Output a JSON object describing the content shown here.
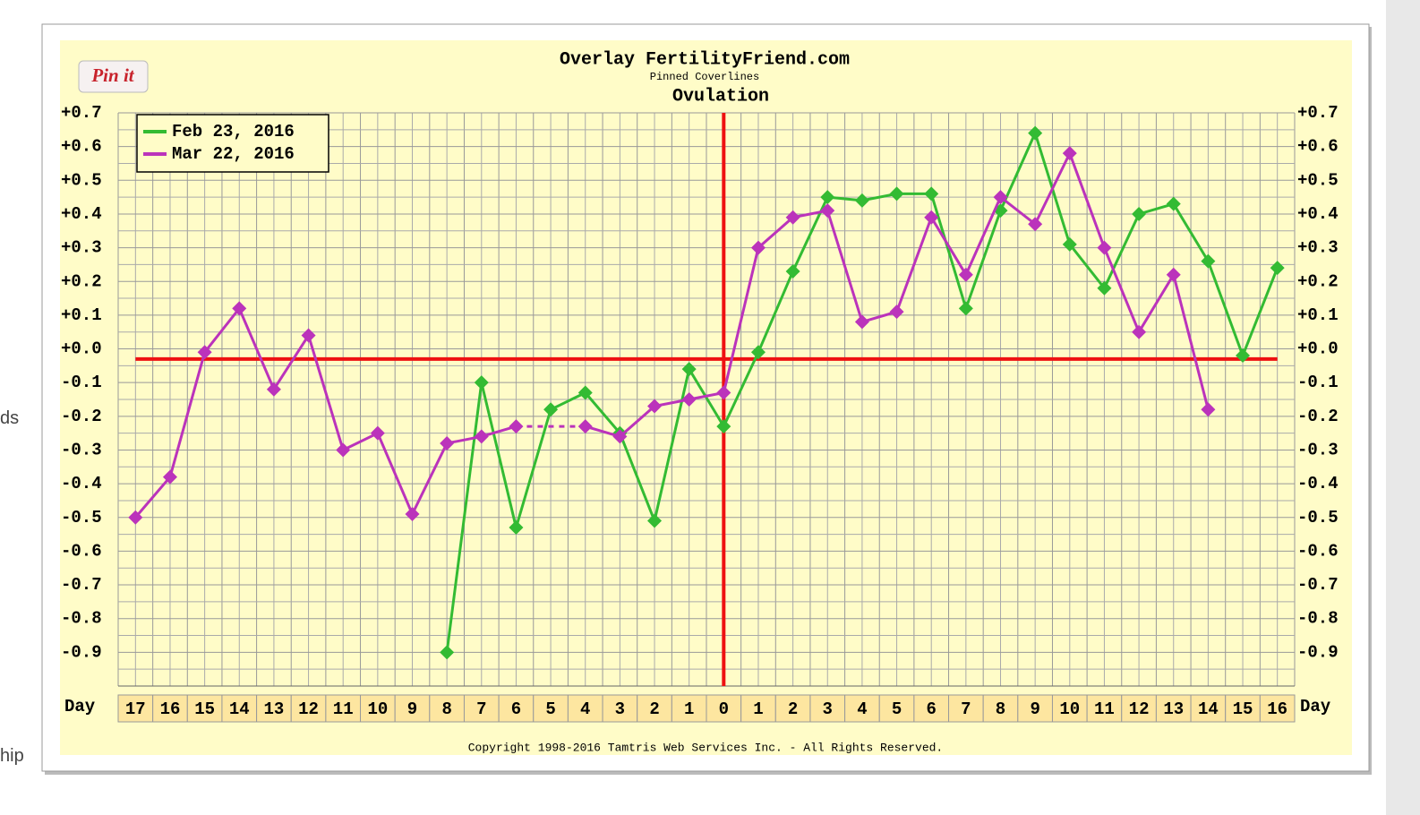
{
  "chart_data": {
    "type": "line",
    "title": "Overlay FertilityFriend.com",
    "subtitle": "Pinned Coverlines",
    "annotation": "Ovulation",
    "x_label": "Day",
    "copyright": "Copyright 1998-2016 Tamtris Web Services Inc. - All Rights Reserved.",
    "categories": [
      "17",
      "16",
      "15",
      "14",
      "13",
      "12",
      "11",
      "10",
      "9",
      "8",
      "7",
      "6",
      "5",
      "4",
      "3",
      "2",
      "1",
      "0",
      "1",
      "2",
      "3",
      "4",
      "5",
      "6",
      "7",
      "8",
      "9",
      "10",
      "11",
      "12",
      "13",
      "14",
      "15",
      "16"
    ],
    "series": [
      {
        "name": "Feb 23, 2016",
        "color": "#33bb33",
        "values": [
          null,
          null,
          null,
          null,
          null,
          null,
          null,
          null,
          null,
          -0.9,
          -0.1,
          -0.53,
          -0.18,
          -0.13,
          -0.25,
          -0.51,
          -0.06,
          -0.23,
          -0.01,
          0.23,
          0.45,
          0.44,
          0.46,
          0.46,
          0.12,
          0.41,
          0.64,
          0.31,
          0.18,
          0.4,
          0.43,
          0.26,
          -0.02,
          0.24
        ]
      },
      {
        "name": "Mar 22, 2016",
        "color": "#bb33bb",
        "values": [
          -0.5,
          -0.38,
          -0.01,
          0.12,
          -0.12,
          0.04,
          -0.3,
          -0.25,
          -0.49,
          -0.28,
          -0.26,
          -0.23,
          null,
          -0.23,
          -0.26,
          -0.17,
          -0.15,
          -0.13,
          0.3,
          0.39,
          0.41,
          0.08,
          0.11,
          0.39,
          0.22,
          0.45,
          0.37,
          0.58,
          0.3,
          0.05,
          0.22,
          -0.18,
          null,
          null
        ]
      }
    ],
    "coverline": -0.03,
    "ovulation_index": 17,
    "ylim": [
      -1.0,
      0.7
    ],
    "yticks": [
      {
        "value": 0.7,
        "label": "+0.7"
      },
      {
        "value": 0.6,
        "label": "+0.6"
      },
      {
        "value": 0.5,
        "label": "+0.5"
      },
      {
        "value": 0.4,
        "label": "+0.4"
      },
      {
        "value": 0.3,
        "label": "+0.3"
      },
      {
        "value": 0.2,
        "label": "+0.2"
      },
      {
        "value": 0.1,
        "label": "+0.1"
      },
      {
        "value": 0,
        "label": "+0.0"
      },
      {
        "value": -0.1,
        "label": "-0.1"
      },
      {
        "value": -0.2,
        "label": "-0.2"
      },
      {
        "value": -0.3,
        "label": "-0.3"
      },
      {
        "value": -0.4,
        "label": "-0.4"
      },
      {
        "value": -0.5,
        "label": "-0.5"
      },
      {
        "value": -0.6,
        "label": "-0.6"
      },
      {
        "value": -0.7,
        "label": "-0.7"
      },
      {
        "value": -0.8,
        "label": "-0.8"
      },
      {
        "value": -0.9,
        "label": "-0.9"
      }
    ],
    "grid": true,
    "legend": "upper left"
  },
  "pin_button": "Pin it",
  "page_fragments": [
    "ds",
    "hip"
  ]
}
